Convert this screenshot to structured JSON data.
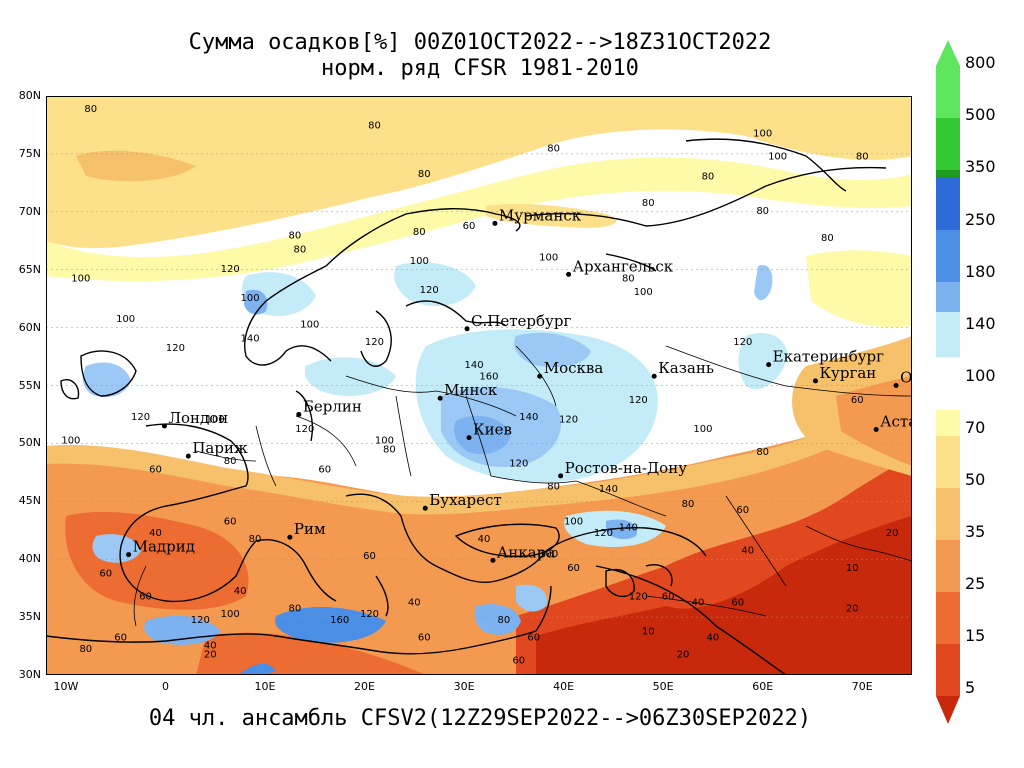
{
  "title": {
    "line1": "Сумма осадков[%] 00Z01OCT2022-->18Z31OCT2022",
    "line2": "норм. ряд CFSR 1981-2010"
  },
  "footer": "04 чл. ансамбль CFSV2(12Z29SEP2022-->06Z30SEP2022)",
  "map": {
    "lat_ticks": [
      "80N",
      "75N",
      "70N",
      "65N",
      "60N",
      "55N",
      "50N",
      "45N",
      "40N",
      "35N",
      "30N"
    ],
    "lon_ticks": [
      "10W",
      "0",
      "10E",
      "20E",
      "30E",
      "40E",
      "50E",
      "60E",
      "70E"
    ],
    "lat_range": [
      30,
      80
    ],
    "lon_range": [
      -12,
      75
    ],
    "cities": [
      {
        "name": "Мурманск",
        "lon": 33.1,
        "lat": 69.0
      },
      {
        "name": "Архангельск",
        "lon": 40.5,
        "lat": 64.6
      },
      {
        "name": "С.Петербург",
        "lon": 30.3,
        "lat": 59.9
      },
      {
        "name": "Москва",
        "lon": 37.6,
        "lat": 55.8
      },
      {
        "name": "Казань",
        "lon": 49.1,
        "lat": 55.8
      },
      {
        "name": "Екатеринбург",
        "lon": 60.6,
        "lat": 56.8
      },
      {
        "name": "Курган",
        "lon": 65.3,
        "lat": 55.4
      },
      {
        "name": "Омск",
        "lon": 73.4,
        "lat": 55.0
      },
      {
        "name": "Астана",
        "lon": 71.4,
        "lat": 51.2
      },
      {
        "name": "Минск",
        "lon": 27.6,
        "lat": 53.9
      },
      {
        "name": "Киев",
        "lon": 30.5,
        "lat": 50.5
      },
      {
        "name": "Ростов-на-Дону",
        "lon": 39.7,
        "lat": 47.2
      },
      {
        "name": "Берлин",
        "lon": 13.4,
        "lat": 52.5
      },
      {
        "name": "Лондон",
        "lon": -0.1,
        "lat": 51.5
      },
      {
        "name": "Париж",
        "lon": 2.3,
        "lat": 48.9
      },
      {
        "name": "Мадрид",
        "lon": -3.7,
        "lat": 40.4
      },
      {
        "name": "Рим",
        "lon": 12.5,
        "lat": 41.9
      },
      {
        "name": "Бухарест",
        "lon": 26.1,
        "lat": 44.4
      },
      {
        "name": "Анкара",
        "lon": 32.9,
        "lat": 39.9
      }
    ],
    "contour_labels": [
      {
        "text": "80",
        "lon": -7.5,
        "lat": 78.6
      },
      {
        "text": "80",
        "lon": 26,
        "lat": 73.0
      },
      {
        "text": "80",
        "lon": 39,
        "lat": 75.2
      },
      {
        "text": "100",
        "lon": 60,
        "lat": 76.5
      },
      {
        "text": "100",
        "lon": 61.5,
        "lat": 74.5
      },
      {
        "text": "80",
        "lon": 70,
        "lat": 74.5
      },
      {
        "text": "80",
        "lon": 54.5,
        "lat": 72.8
      },
      {
        "text": "80",
        "lon": 48.5,
        "lat": 70.5
      },
      {
        "text": "80",
        "lon": 60,
        "lat": 69.8
      },
      {
        "text": "80",
        "lon": 66.5,
        "lat": 67.5
      },
      {
        "text": "80",
        "lon": 25.5,
        "lat": 68.0
      },
      {
        "text": "60",
        "lon": 30.5,
        "lat": 68.5
      },
      {
        "text": "80",
        "lon": 21,
        "lat": 77.2
      },
      {
        "text": "80",
        "lon": 13,
        "lat": 67.7
      },
      {
        "text": "80",
        "lon": 13.5,
        "lat": 66.5
      },
      {
        "text": "120",
        "lon": 6.5,
        "lat": 64.8
      },
      {
        "text": "100",
        "lon": 25.5,
        "lat": 65.5
      },
      {
        "text": "120",
        "lon": 26.5,
        "lat": 63.0
      },
      {
        "text": "100",
        "lon": 8.5,
        "lat": 62.3
      },
      {
        "text": "100",
        "lon": 14.5,
        "lat": 60.0
      },
      {
        "text": "120",
        "lon": 21,
        "lat": 58.5
      },
      {
        "text": "100",
        "lon": -8.5,
        "lat": 64.0
      },
      {
        "text": "100",
        "lon": -4,
        "lat": 60.5
      },
      {
        "text": "120",
        "lon": 1,
        "lat": 58.0
      },
      {
        "text": "140",
        "lon": 8.5,
        "lat": 58.8
      },
      {
        "text": "100",
        "lon": 38.5,
        "lat": 65.8
      },
      {
        "text": "80",
        "lon": 46.5,
        "lat": 64.0
      },
      {
        "text": "100",
        "lon": 48,
        "lat": 62.8
      },
      {
        "text": "120",
        "lon": 58,
        "lat": 58.5
      },
      {
        "text": "140",
        "lon": 31,
        "lat": 56.5
      },
      {
        "text": "160",
        "lon": 32.5,
        "lat": 55.5
      },
      {
        "text": "120",
        "lon": 47.5,
        "lat": 53.5
      },
      {
        "text": "140",
        "lon": 36.5,
        "lat": 52.0
      },
      {
        "text": "120",
        "lon": 40.5,
        "lat": 51.8
      },
      {
        "text": "100",
        "lon": 54,
        "lat": 51.0
      },
      {
        "text": "80",
        "lon": 60,
        "lat": 49.0
      },
      {
        "text": "60",
        "lon": 69.5,
        "lat": 53.5
      },
      {
        "text": "120",
        "lon": 35.5,
        "lat": 48.0
      },
      {
        "text": "140",
        "lon": 44.5,
        "lat": 45.8
      },
      {
        "text": "100",
        "lon": 22,
        "lat": 50.0
      },
      {
        "text": "80",
        "lon": 22.5,
        "lat": 49.2
      },
      {
        "text": "120",
        "lon": 14,
        "lat": 51.0
      },
      {
        "text": "120",
        "lon": -2.5,
        "lat": 52.0
      },
      {
        "text": "100",
        "lon": -9.5,
        "lat": 50.0
      },
      {
        "text": "100",
        "lon": 5,
        "lat": 51.8
      },
      {
        "text": "80",
        "lon": 6.5,
        "lat": 48.2
      },
      {
        "text": "60",
        "lon": -1,
        "lat": 47.5
      },
      {
        "text": "60",
        "lon": 16,
        "lat": 47.5
      },
      {
        "text": "80",
        "lon": 39,
        "lat": 46.0
      },
      {
        "text": "80",
        "lon": 52.5,
        "lat": 44.5
      },
      {
        "text": "60",
        "lon": 58,
        "lat": 44.0
      },
      {
        "text": "100",
        "lon": 41,
        "lat": 43.0
      },
      {
        "text": "140",
        "lon": 46.5,
        "lat": 42.5
      },
      {
        "text": "120",
        "lon": 44,
        "lat": 42.0
      },
      {
        "text": "100",
        "lon": 38.5,
        "lat": 40.2
      },
      {
        "text": "40",
        "lon": 32,
        "lat": 41.5
      },
      {
        "text": "60",
        "lon": 41,
        "lat": 39.0
      },
      {
        "text": "40",
        "lon": 58.5,
        "lat": 40.5
      },
      {
        "text": "20",
        "lon": 73,
        "lat": 42.0
      },
      {
        "text": "10",
        "lon": 69,
        "lat": 39.0
      },
      {
        "text": "20",
        "lon": 69,
        "lat": 35.5
      },
      {
        "text": "60",
        "lon": 6.5,
        "lat": 43.0
      },
      {
        "text": "80",
        "lon": 9,
        "lat": 41.5
      },
      {
        "text": "60",
        "lon": 20.5,
        "lat": 40.0
      },
      {
        "text": "40",
        "lon": -1,
        "lat": 42.0
      },
      {
        "text": "60",
        "lon": -6,
        "lat": 38.5
      },
      {
        "text": "60",
        "lon": -2,
        "lat": 36.5
      },
      {
        "text": "60",
        "lon": -4.5,
        "lat": 33.0
      },
      {
        "text": "80",
        "lon": -8,
        "lat": 32.0
      },
      {
        "text": "40",
        "lon": 7.5,
        "lat": 37.0
      },
      {
        "text": "120",
        "lon": 3.5,
        "lat": 34.5
      },
      {
        "text": "100",
        "lon": 6.5,
        "lat": 35.0
      },
      {
        "text": "80",
        "lon": 13,
        "lat": 35.5
      },
      {
        "text": "120",
        "lon": 20.5,
        "lat": 35.0
      },
      {
        "text": "160",
        "lon": 17.5,
        "lat": 34.5
      },
      {
        "text": "40",
        "lon": 25,
        "lat": 36.0
      },
      {
        "text": "60",
        "lon": 26,
        "lat": 33.0
      },
      {
        "text": "20",
        "lon": 4.5,
        "lat": 31.5
      },
      {
        "text": "40",
        "lon": 4.5,
        "lat": 32.3
      },
      {
        "text": "80",
        "lon": 34,
        "lat": 34.5
      },
      {
        "text": "120",
        "lon": 47.5,
        "lat": 36.5
      },
      {
        "text": "60",
        "lon": 50.5,
        "lat": 36.5
      },
      {
        "text": "40",
        "lon": 53.5,
        "lat": 36.0
      },
      {
        "text": "60",
        "lon": 57.5,
        "lat": 36.0
      },
      {
        "text": "40",
        "lon": 55,
        "lat": 33.0
      },
      {
        "text": "10",
        "lon": 48.5,
        "lat": 33.5
      },
      {
        "text": "20",
        "lon": 52,
        "lat": 31.5
      },
      {
        "text": "60",
        "lon": 37,
        "lat": 33.0
      },
      {
        "text": "60",
        "lon": 35.5,
        "lat": 31.0
      }
    ]
  },
  "colorbar": {
    "labels": [
      "800",
      "500",
      "350",
      "250",
      "180",
      "140",
      "100",
      "70",
      "50",
      "35",
      "25",
      "15",
      "5"
    ],
    "colors": {
      "c800": "#5ee65e",
      "c500": "#32c832",
      "c350": "#1e9c1e",
      "c250": "#2d6bd6",
      "c180": "#4a8ee6",
      "c140": "#7cb2ef",
      "c140b": "#9bc8f5",
      "c100": "#c3ecf8",
      "white": "#ffffff",
      "c70": "#fffaa8",
      "c50": "#fde08a",
      "c35": "#f7c06a",
      "c25": "#f49a50",
      "c15": "#ec6c32",
      "c10": "#e24820",
      "c5": "#c8280c"
    }
  }
}
